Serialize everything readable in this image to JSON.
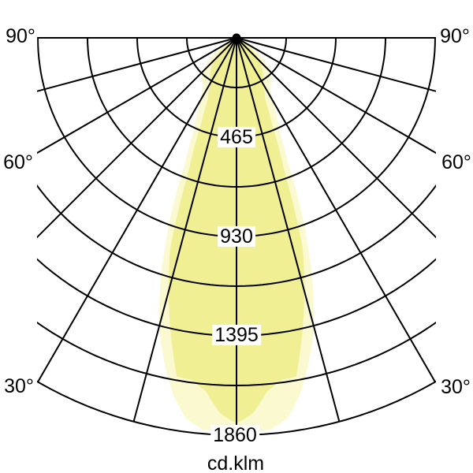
{
  "labels": {
    "angle_ticks": [
      "90°",
      "60°",
      "30°"
    ],
    "radial_ticks": [
      "465",
      "930",
      "1395",
      "1860"
    ],
    "unit": "cd.klm"
  },
  "colors": {
    "background": "#FFFFFF",
    "grid_line": "#000000",
    "text": "#000000",
    "beam_outer": "#FBF9D0",
    "beam_inner": "#F1EF93",
    "origin_dot": "#000000"
  },
  "chart_data": {
    "type": "polar",
    "subtype": "luminous-intensity-distribution",
    "unit": "cd.klm",
    "zero_angle_direction": "down",
    "symmetry": "mirrored-left-right",
    "angle_axis": {
      "range_deg": [
        -90,
        90
      ],
      "grid_step_deg": 15,
      "tick_labels_deg": [
        90,
        60,
        30
      ]
    },
    "radial_axis": {
      "min": 0,
      "max": 1860,
      "grid_step": 232.5,
      "labeled_values": [
        465,
        930,
        1395,
        1860
      ]
    },
    "series": [
      {
        "name": "outer-beam",
        "fill": "#FBF9D0",
        "angles_deg": [
          0,
          5,
          7.5,
          10,
          12.5,
          15,
          17.5,
          20,
          22.5,
          25,
          30,
          35,
          40,
          45,
          50,
          55,
          60,
          65
        ],
        "values_cd_klm": [
          1845,
          1840,
          1800,
          1700,
          1560,
          1400,
          1180,
          920,
          620,
          470,
          330,
          270,
          255,
          225,
          175,
          115,
          50,
          0
        ]
      },
      {
        "name": "inner-beam",
        "fill": "#F1EF93",
        "angles_deg": [
          0,
          2.5,
          5,
          7.5,
          10,
          12.5,
          15,
          17.5,
          20,
          22.5,
          25,
          30,
          35,
          40,
          45,
          50,
          55,
          60,
          65
        ],
        "values_cd_klm": [
          1805,
          1760,
          1660,
          1615,
          1610,
          1420,
          1230,
          1030,
          640,
          430,
          320,
          245,
          215,
          185,
          150,
          105,
          55,
          20,
          0
        ]
      }
    ]
  }
}
